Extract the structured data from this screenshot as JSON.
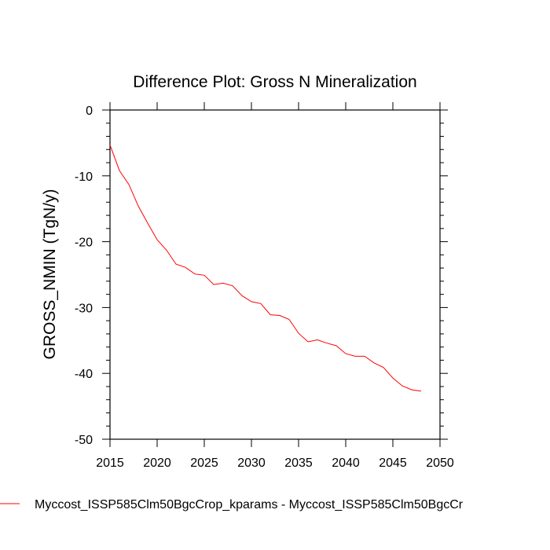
{
  "chart_data": {
    "type": "line",
    "title": "Difference Plot: Gross N Mineralization",
    "xlabel": "",
    "ylabel": "GROSS_NMIN  (TgN/y)",
    "xlim": [
      2015,
      2050
    ],
    "ylim": [
      -50,
      0
    ],
    "xticks": [
      2015,
      2020,
      2025,
      2030,
      2035,
      2040,
      2045,
      2050
    ],
    "yticks": [
      0,
      -10,
      -20,
      -30,
      -40,
      -50
    ],
    "grid": false,
    "legend_position": "bottom",
    "series": [
      {
        "name": "Myccost_ISSP585Clm50BgcCrop_kparams - Myccost_ISSP585Clm50BgcCr",
        "color": "#ff0000",
        "x": [
          2015,
          2016,
          2017,
          2018,
          2019,
          2020,
          2021,
          2022,
          2023,
          2024,
          2025,
          2026,
          2027,
          2028,
          2029,
          2030,
          2031,
          2032,
          2033,
          2034,
          2035,
          2036,
          2037,
          2038,
          2039,
          2040,
          2041,
          2042,
          2043,
          2044,
          2045,
          2046,
          2047,
          2048
        ],
        "y": [
          -5.3,
          -9.2,
          -11.3,
          -14.6,
          -17.2,
          -19.7,
          -21.3,
          -23.4,
          -23.9,
          -24.9,
          -25.1,
          -26.5,
          -26.3,
          -26.7,
          -28.2,
          -29.1,
          -29.4,
          -31.1,
          -31.2,
          -31.8,
          -33.9,
          -35.2,
          -34.9,
          -35.4,
          -35.8,
          -37.0,
          -37.4,
          -37.4,
          -38.4,
          -39.1,
          -40.7,
          -41.9,
          -42.5,
          -42.7
        ]
      }
    ]
  }
}
